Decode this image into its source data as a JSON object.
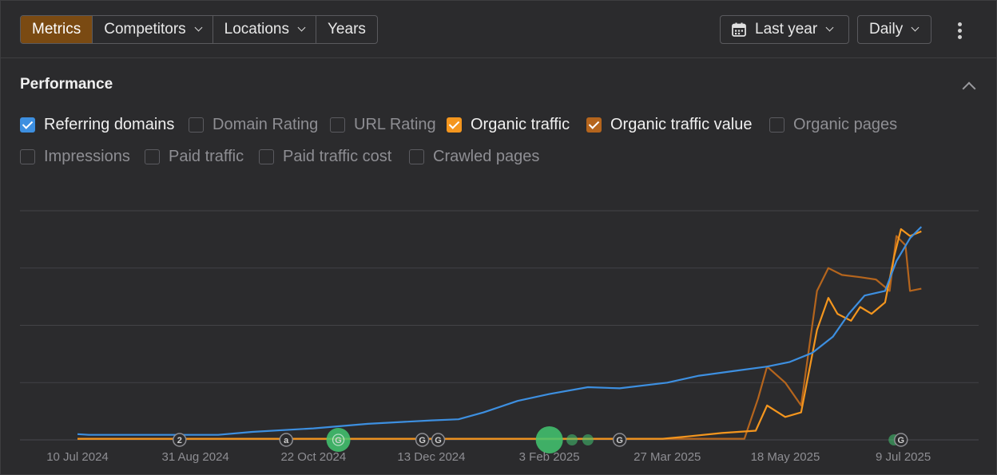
{
  "toolbar": {
    "tabs": [
      {
        "label": "Metrics"
      },
      {
        "label": "Competitors"
      },
      {
        "label": "Locations"
      },
      {
        "label": "Years"
      }
    ],
    "date_range": "Last year",
    "granularity": "Daily",
    "more_icon": "more-vertical-icon"
  },
  "section": {
    "title": "Performance"
  },
  "colors": {
    "accent": "#7a4a12",
    "referring_domains": "#3d8fe0",
    "organic_traffic": "#f4961e",
    "organic_traffic_value": "#b5651d",
    "annotation_green": "#43c771"
  },
  "metrics": [
    {
      "label": "Referring domains",
      "checked": true
    },
    {
      "label": "Domain Rating",
      "checked": false
    },
    {
      "label": "URL Rating",
      "checked": false
    },
    {
      "label": "Organic traffic",
      "checked": true
    },
    {
      "label": "Organic traffic value",
      "checked": true
    },
    {
      "label": "Organic pages",
      "checked": false
    },
    {
      "label": "Impressions",
      "checked": false
    },
    {
      "label": "Paid traffic",
      "checked": false
    },
    {
      "label": "Paid traffic cost",
      "checked": false
    },
    {
      "label": "Crawled pages",
      "checked": false
    }
  ],
  "chart_data": {
    "type": "line",
    "grid": true,
    "y_ticks_visible": false,
    "xlim": [
      "2024-07-10",
      "2025-07-19"
    ],
    "ylim": [
      0,
      100
    ],
    "x_tick_labels": [
      "10 Jul 2024",
      "31 Aug 2024",
      "22 Oct 2024",
      "13 Dec 2024",
      "3 Feb 2025",
      "27 Mar 2025",
      "18 May 2025",
      "9 Jul 2025"
    ],
    "x_tick_dates": [
      "2024-07-10",
      "2024-08-31",
      "2024-10-22",
      "2024-12-13",
      "2025-02-03",
      "2025-03-27",
      "2025-05-18",
      "2025-07-09"
    ],
    "series": [
      {
        "key": "referring_domains",
        "color": "#3d8fe0",
        "points": [
          [
            "2024-07-10",
            2.5
          ],
          [
            "2024-07-15",
            2.2
          ],
          [
            "2024-08-20",
            2.2
          ],
          [
            "2024-09-10",
            2.2
          ],
          [
            "2024-09-25",
            3.5
          ],
          [
            "2024-10-22",
            5.0
          ],
          [
            "2024-11-15",
            7.0
          ],
          [
            "2024-12-13",
            8.5
          ],
          [
            "2024-12-25",
            9.0
          ],
          [
            "2025-01-05",
            12.0
          ],
          [
            "2025-01-20",
            17.0
          ],
          [
            "2025-02-03",
            20.0
          ],
          [
            "2025-02-20",
            23.0
          ],
          [
            "2025-03-06",
            22.5
          ],
          [
            "2025-03-27",
            25.0
          ],
          [
            "2025-04-10",
            28.0
          ],
          [
            "2025-04-25",
            30.0
          ],
          [
            "2025-05-10",
            32.0
          ],
          [
            "2025-05-20",
            34.0
          ],
          [
            "2025-05-30",
            38.0
          ],
          [
            "2025-06-08",
            45.0
          ],
          [
            "2025-06-15",
            55.0
          ],
          [
            "2025-06-22",
            63.0
          ],
          [
            "2025-07-01",
            65.0
          ],
          [
            "2025-07-06",
            78.0
          ],
          [
            "2025-07-12",
            88.0
          ],
          [
            "2025-07-17",
            93.0
          ]
        ]
      },
      {
        "key": "organic_traffic",
        "color": "#f4961e",
        "points": [
          [
            "2024-07-10",
            0.5
          ],
          [
            "2025-03-25",
            0.5
          ],
          [
            "2025-04-05",
            1.5
          ],
          [
            "2025-04-20",
            3.0
          ],
          [
            "2025-05-05",
            4.0
          ],
          [
            "2025-05-10",
            15.0
          ],
          [
            "2025-05-18",
            10.0
          ],
          [
            "2025-05-25",
            12.0
          ],
          [
            "2025-06-01",
            48.0
          ],
          [
            "2025-06-06",
            62.0
          ],
          [
            "2025-06-10",
            55.0
          ],
          [
            "2025-06-16",
            52.0
          ],
          [
            "2025-06-20",
            58.0
          ],
          [
            "2025-06-25",
            55.0
          ],
          [
            "2025-07-01",
            60.0
          ],
          [
            "2025-07-05",
            80.0
          ],
          [
            "2025-07-08",
            92.0
          ],
          [
            "2025-07-12",
            89.0
          ],
          [
            "2025-07-17",
            91.0
          ]
        ]
      },
      {
        "key": "organic_traffic_value",
        "color": "#b5651d",
        "points": [
          [
            "2024-07-10",
            0.5
          ],
          [
            "2025-04-30",
            0.5
          ],
          [
            "2025-05-06",
            18.0
          ],
          [
            "2025-05-10",
            32.0
          ],
          [
            "2025-05-18",
            25.0
          ],
          [
            "2025-05-25",
            15.0
          ],
          [
            "2025-06-01",
            65.0
          ],
          [
            "2025-06-06",
            75.0
          ],
          [
            "2025-06-12",
            72.0
          ],
          [
            "2025-06-20",
            71.0
          ],
          [
            "2025-06-27",
            70.0
          ],
          [
            "2025-07-03",
            65.0
          ],
          [
            "2025-07-06",
            89.0
          ],
          [
            "2025-07-10",
            85.0
          ],
          [
            "2025-07-12",
            65.0
          ],
          [
            "2025-07-17",
            66.0
          ]
        ]
      }
    ],
    "annotations": [
      {
        "date": "2024-08-24",
        "label": "2",
        "kind": "badge"
      },
      {
        "date": "2024-10-10",
        "label": "a",
        "kind": "badge"
      },
      {
        "date": "2024-11-02",
        "label": "G",
        "kind": "update",
        "size": "medium"
      },
      {
        "date": "2024-12-09",
        "label": "G",
        "kind": "badge"
      },
      {
        "date": "2024-12-16",
        "label": "G",
        "kind": "badge"
      },
      {
        "date": "2025-02-03",
        "label": "",
        "kind": "update",
        "size": "large"
      },
      {
        "date": "2025-02-13",
        "label": "",
        "kind": "update",
        "size": "small"
      },
      {
        "date": "2025-02-20",
        "label": "",
        "kind": "update",
        "size": "small"
      },
      {
        "date": "2025-03-06",
        "label": "G",
        "kind": "badge"
      },
      {
        "date": "2025-07-05",
        "label": "",
        "kind": "update",
        "size": "small"
      },
      {
        "date": "2025-07-08",
        "label": "G",
        "kind": "badge"
      }
    ]
  }
}
